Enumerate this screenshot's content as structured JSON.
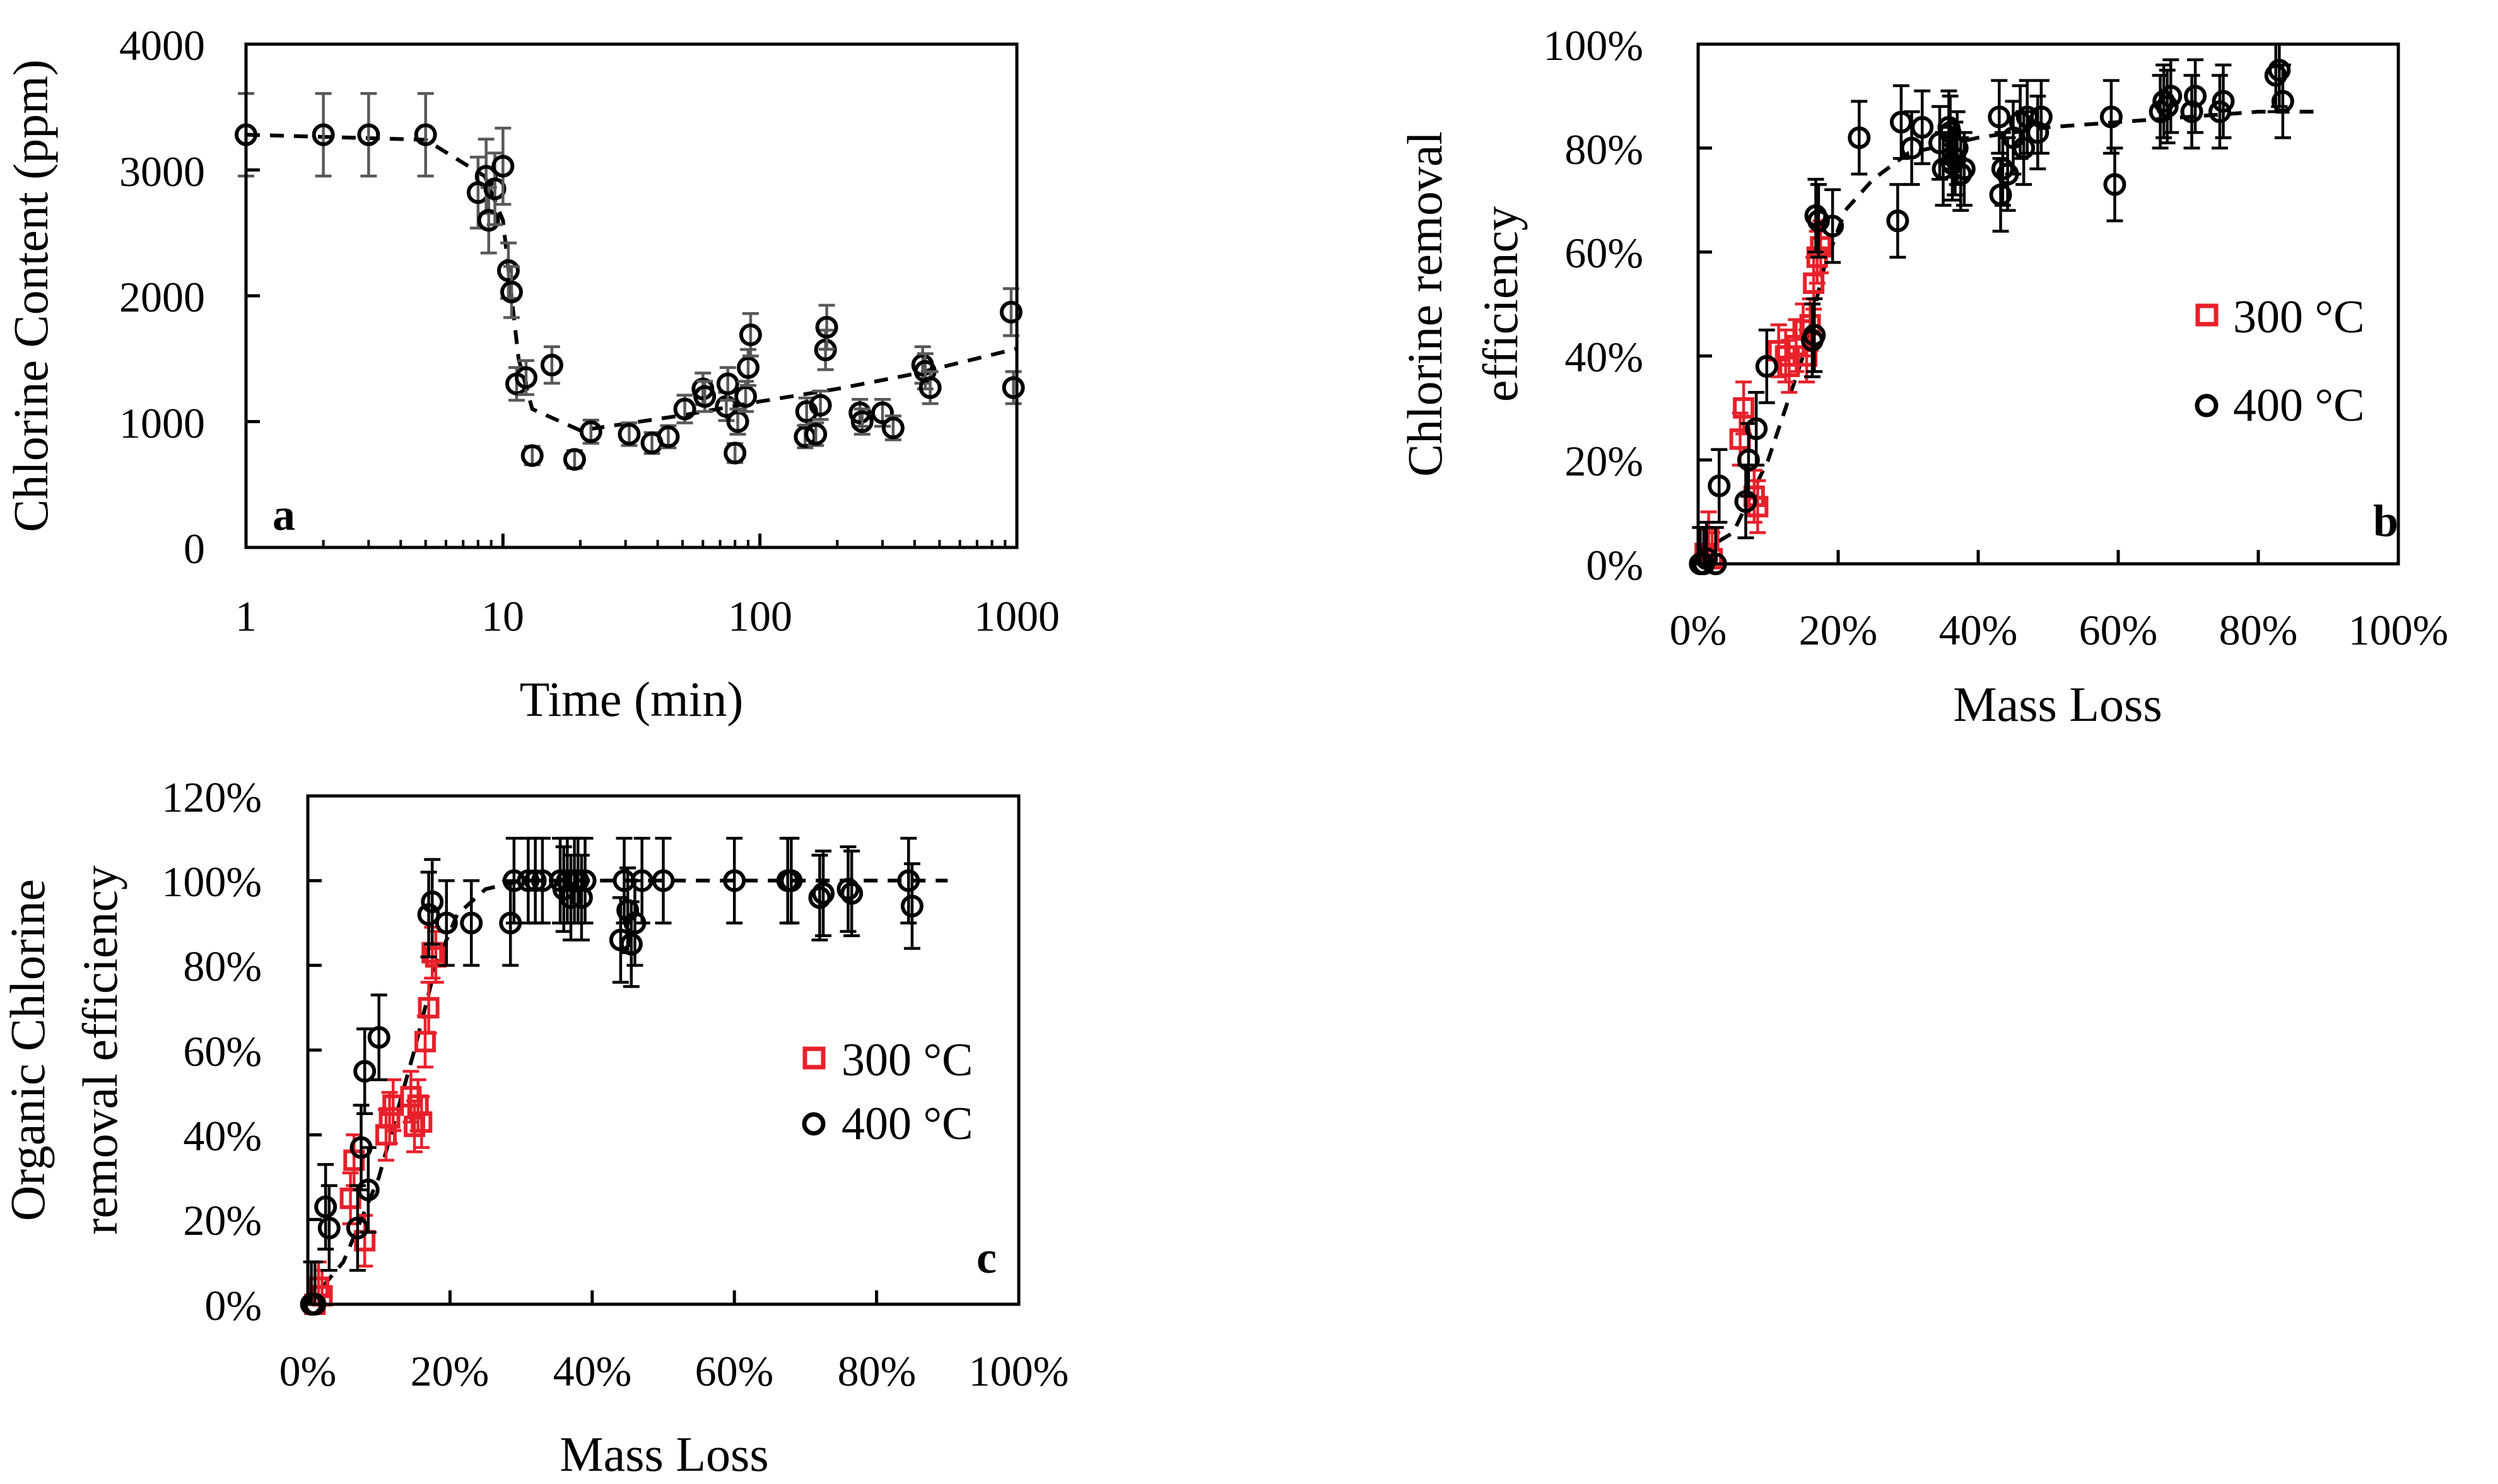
{
  "colors": {
    "s300": "#e8202a",
    "s400": "#000000",
    "err_a": "#595959",
    "err_b": "#000000"
  },
  "chart_data": [
    {
      "id": "a",
      "type": "scatter",
      "panel_label": "a",
      "xlabel": "Time (min)",
      "ylabel": "Chlorine Content (ppm)",
      "xscale": "log",
      "xlim": [
        1,
        1000
      ],
      "ylim": [
        0,
        4000
      ],
      "xticks": [
        1,
        10,
        100,
        1000
      ],
      "xtick_labels": [
        "1",
        "10",
        "100",
        "1000"
      ],
      "yticks": [
        0,
        1000,
        2000,
        3000,
        4000
      ],
      "ytick_labels": [
        "0",
        "1000",
        "2000",
        "3000",
        "4000"
      ],
      "series": [
        {
          "name": "400 °C",
          "marker": "circle",
          "color": "#000000",
          "errorbar_color": "#595959",
          "error_pct": 0.1,
          "points": [
            [
              1,
              3280
            ],
            [
              2,
              3280
            ],
            [
              3,
              3280
            ],
            [
              5,
              3280
            ],
            [
              8,
              2820
            ],
            [
              8.6,
              2950
            ],
            [
              8.8,
              2600
            ],
            [
              9.3,
              2850
            ],
            [
              10,
              3030
            ],
            [
              10.5,
              2200
            ],
            [
              10.8,
              2030
            ],
            [
              11.3,
              1300
            ],
            [
              12.3,
              1350
            ],
            [
              13,
              730
            ],
            [
              15.5,
              1450
            ],
            [
              19,
              700
            ],
            [
              22,
              920
            ],
            [
              31,
              900
            ],
            [
              38,
              830
            ],
            [
              44,
              880
            ],
            [
              51,
              1100
            ],
            [
              60,
              1260
            ],
            [
              61,
              1200
            ],
            [
              74,
              1120
            ],
            [
              75,
              1300
            ],
            [
              80,
              750
            ],
            [
              82,
              1000
            ],
            [
              88,
              1200
            ],
            [
              90,
              1430
            ],
            [
              92,
              1690
            ],
            [
              150,
              880
            ],
            [
              152,
              1080
            ],
            [
              165,
              900
            ],
            [
              172,
              1130
            ],
            [
              180,
              1570
            ],
            [
              182,
              1750
            ],
            [
              245,
              1070
            ],
            [
              250,
              1000
            ],
            [
              300,
              1070
            ],
            [
              330,
              950
            ],
            [
              430,
              1450
            ],
            [
              440,
              1400
            ],
            [
              460,
              1270
            ],
            [
              950,
              1870
            ],
            [
              970,
              1270
            ]
          ]
        }
      ],
      "trend": [
        [
          1,
          3280
        ],
        [
          5,
          3240
        ],
        [
          8.5,
          2950
        ],
        [
          10,
          2600
        ],
        [
          11.5,
          1500
        ],
        [
          13,
          1100
        ],
        [
          20,
          930
        ],
        [
          50,
          1050
        ],
        [
          100,
          1160
        ],
        [
          200,
          1260
        ],
        [
          400,
          1380
        ],
        [
          1000,
          1580
        ]
      ]
    },
    {
      "id": "b",
      "type": "scatter",
      "panel_label": "b",
      "xlabel": "Mass Loss",
      "ylabel": [
        "Chlorine removal",
        "efficiency"
      ],
      "xlim": [
        0,
        100
      ],
      "ylim": [
        0,
        100
      ],
      "xticks": [
        0,
        20,
        40,
        60,
        80,
        100
      ],
      "xtick_labels": [
        "0%",
        "20%",
        "40%",
        "60%",
        "80%",
        "100%"
      ],
      "yticks": [
        0,
        20,
        40,
        60,
        80,
        100
      ],
      "ytick_labels": [
        "0%",
        "20%",
        "40%",
        "60%",
        "80%",
        "100%"
      ],
      "legend": [
        "300 °C",
        "400 °C"
      ],
      "series": [
        {
          "name": "300 °C",
          "marker": "square",
          "color": "#e8202a",
          "errorbar_color": "#e8202a",
          "error_abs": 5,
          "points": [
            [
              1,
              2
            ],
            [
              1.5,
              5
            ],
            [
              2,
              1
            ],
            [
              6,
              24
            ],
            [
              6.5,
              30
            ],
            [
              8,
              13
            ],
            [
              8.5,
              11
            ],
            [
              11.5,
              41
            ],
            [
              12.5,
              40
            ],
            [
              13,
              38
            ],
            [
              14,
              42
            ],
            [
              15,
              45
            ],
            [
              15.5,
              40
            ],
            [
              16,
              46
            ],
            [
              16.5,
              54
            ],
            [
              17,
              59
            ],
            [
              17.5,
              61
            ]
          ]
        },
        {
          "name": "400 °C",
          "marker": "circle",
          "color": "#000000",
          "errorbar_color": "#000000",
          "error_abs": 7,
          "points": [
            [
              0.3,
              0
            ],
            [
              0.8,
              0
            ],
            [
              1.2,
              1
            ],
            [
              2.5,
              0
            ],
            [
              3,
              15
            ],
            [
              6.8,
              12
            ],
            [
              7.2,
              20
            ],
            [
              8.3,
              26
            ],
            [
              9.8,
              38
            ],
            [
              16.3,
              43
            ],
            [
              16.6,
              44
            ],
            [
              16.8,
              67
            ],
            [
              17.2,
              66
            ],
            [
              19.2,
              65
            ],
            [
              23,
              82
            ],
            [
              28.5,
              66
            ],
            [
              29,
              85
            ],
            [
              30.5,
              80
            ],
            [
              32,
              84
            ],
            [
              34.5,
              81
            ],
            [
              35,
              76
            ],
            [
              35.8,
              84
            ],
            [
              36,
              83
            ],
            [
              36.3,
              77
            ],
            [
              36.7,
              78
            ],
            [
              37,
              80
            ],
            [
              37.5,
              75
            ],
            [
              38,
              76
            ],
            [
              43,
              86
            ],
            [
              43.2,
              71
            ],
            [
              43.5,
              76
            ],
            [
              44.2,
              75
            ],
            [
              45,
              82
            ],
            [
              46,
              85
            ],
            [
              46.5,
              80
            ],
            [
              47,
              86
            ],
            [
              48.5,
              83
            ],
            [
              49,
              86
            ],
            [
              59,
              86
            ],
            [
              59.5,
              73
            ],
            [
              66,
              87
            ],
            [
              66.5,
              89
            ],
            [
              67,
              88
            ],
            [
              67.5,
              90
            ],
            [
              70.5,
              87
            ],
            [
              71,
              90
            ],
            [
              74.5,
              87
            ],
            [
              75,
              89
            ],
            [
              82.5,
              94
            ],
            [
              83,
              95
            ],
            [
              83.5,
              89
            ]
          ]
        }
      ],
      "trend": [
        [
          0,
          2
        ],
        [
          5,
          6
        ],
        [
          10,
          20
        ],
        [
          15,
          40
        ],
        [
          18,
          57
        ],
        [
          21,
          68
        ],
        [
          25,
          74
        ],
        [
          30,
          79
        ],
        [
          40,
          82
        ],
        [
          50,
          84
        ],
        [
          60,
          85
        ],
        [
          70,
          86
        ],
        [
          80,
          87
        ],
        [
          88,
          87
        ]
      ]
    },
    {
      "id": "c",
      "type": "scatter",
      "panel_label": "c",
      "xlabel": "Mass Loss",
      "ylabel": [
        "Organic Chlorine",
        "removal efficiency"
      ],
      "xlim": [
        0,
        100
      ],
      "ylim": [
        0,
        120
      ],
      "xticks": [
        0,
        20,
        40,
        60,
        80,
        100
      ],
      "xtick_labels": [
        "0%",
        "20%",
        "40%",
        "60%",
        "80%",
        "100%"
      ],
      "yticks": [
        0,
        20,
        40,
        60,
        80,
        100,
        120
      ],
      "ytick_labels": [
        "0%",
        "20%",
        "40%",
        "60%",
        "80%",
        "100%",
        "120%"
      ],
      "legend": [
        "300 °C",
        "400 °C"
      ],
      "series": [
        {
          "name": "300 °C",
          "marker": "square",
          "color": "#e8202a",
          "errorbar_color": "#e8202a",
          "error_abs": 6,
          "points": [
            [
              1,
              0
            ],
            [
              1.5,
              4
            ],
            [
              2,
              2
            ],
            [
              6,
              25
            ],
            [
              6.5,
              34
            ],
            [
              8,
              15
            ],
            [
              11,
              40
            ],
            [
              11.5,
              44
            ],
            [
              12,
              47
            ],
            [
              14.5,
              49
            ],
            [
              15,
              42
            ],
            [
              15.5,
              47
            ],
            [
              16,
              43
            ],
            [
              16.5,
              62
            ],
            [
              17,
              70
            ],
            [
              17.5,
              83
            ],
            [
              18,
              82
            ]
          ]
        },
        {
          "name": "400 °C",
          "marker": "circle",
          "color": "#000000",
          "errorbar_color": "#000000",
          "error_abs": 10,
          "points": [
            [
              0.5,
              0
            ],
            [
              1,
              0
            ],
            [
              2.5,
              23
            ],
            [
              3,
              18
            ],
            [
              7,
              18
            ],
            [
              7.5,
              37
            ],
            [
              8,
              55
            ],
            [
              8.5,
              27
            ],
            [
              10,
              63
            ],
            [
              17,
              92
            ],
            [
              17.5,
              95
            ],
            [
              19.5,
              90
            ],
            [
              23,
              90
            ],
            [
              28.5,
              90
            ],
            [
              29,
              100
            ],
            [
              31,
              100
            ],
            [
              32,
              100
            ],
            [
              33,
              100
            ],
            [
              35.5,
              100
            ],
            [
              36,
              98
            ],
            [
              36.5,
              100
            ],
            [
              37,
              96
            ],
            [
              37.5,
              100
            ],
            [
              38,
              100
            ],
            [
              38.5,
              96
            ],
            [
              39,
              100
            ],
            [
              44,
              86
            ],
            [
              44.5,
              100
            ],
            [
              45,
              93
            ],
            [
              45.5,
              85
            ],
            [
              46,
              90
            ],
            [
              47,
              100
            ],
            [
              50,
              100
            ],
            [
              60,
              100
            ],
            [
              67.5,
              100
            ],
            [
              68,
              100
            ],
            [
              72,
              96
            ],
            [
              72.5,
              97
            ],
            [
              76,
              98
            ],
            [
              76.5,
              97
            ],
            [
              84.5,
              100
            ],
            [
              85,
              94
            ]
          ]
        }
      ],
      "trend": [
        [
          0,
          0
        ],
        [
          5,
          10
        ],
        [
          10,
          30
        ],
        [
          15,
          60
        ],
        [
          18,
          80
        ],
        [
          21,
          92
        ],
        [
          25,
          98
        ],
        [
          30,
          100
        ],
        [
          90,
          100
        ]
      ]
    }
  ]
}
